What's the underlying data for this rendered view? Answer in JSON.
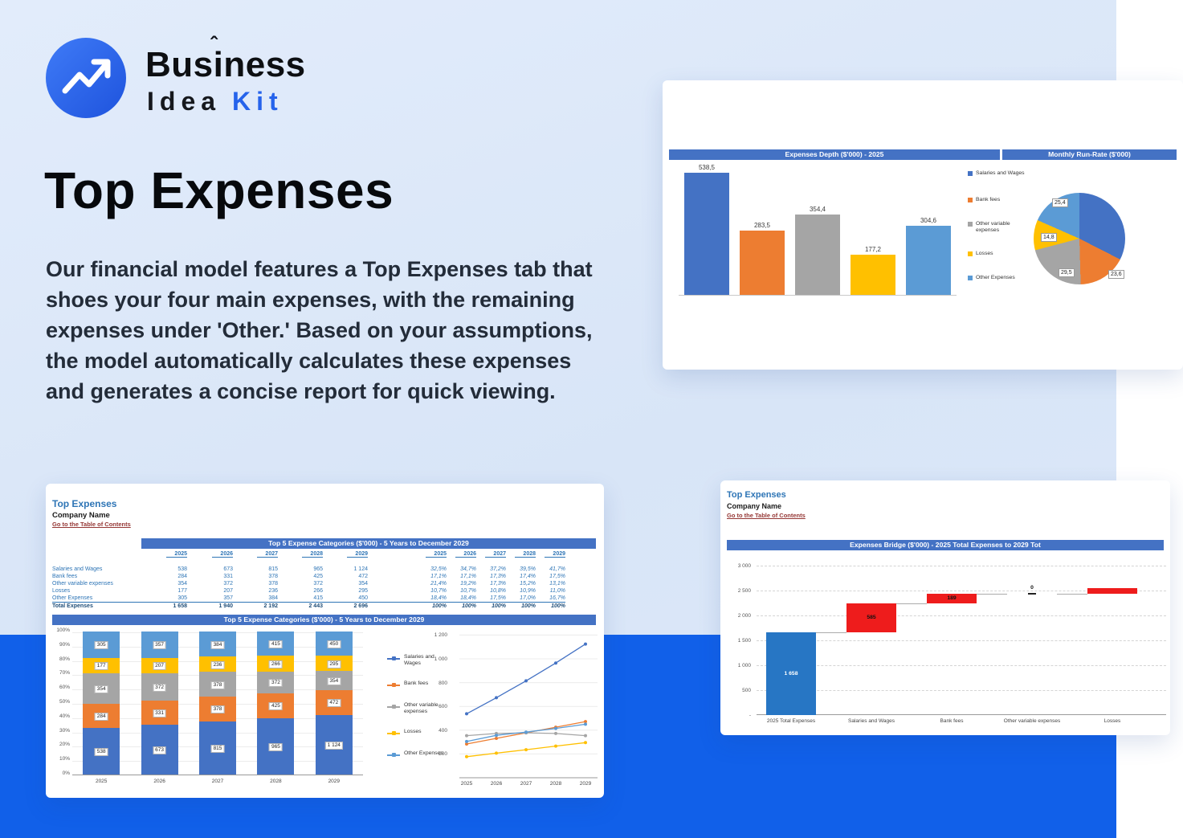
{
  "brand": {
    "word_top": "Business",
    "caret": "ˆ",
    "word_idea": "Idea",
    "word_kit": "Kit"
  },
  "hero": {
    "title": "Top Expenses",
    "paragraph": "Our financial model features a Top Expenses tab that shoes your four main expenses, with the remaining expenses under 'Other.' Based on your assumptions, the model automatically calculates these expenses and generates a concise report for quick viewing."
  },
  "cards": {
    "depth": {
      "header_left": "Expenses Depth ($'000) - 2025",
      "header_right": "Monthly Run-Rate ($'000)"
    },
    "top5": {
      "sheet_title": "Top Expenses",
      "company": "Company Name",
      "toc_link": "Go to the Table of Contents",
      "header_table": "Top 5 Expense Categories ($'000) - 5 Years to December 2029",
      "header_chart": "Top 5 Expense Categories ($'000) - 5 Years to December 2029",
      "table": {
        "years": [
          "2025",
          "2026",
          "2027",
          "2028",
          "2029"
        ],
        "rows": [
          {
            "label": "Salaries and Wages",
            "values": [
              "538",
              "673",
              "815",
              "965",
              "1 124"
            ],
            "pcts": [
              "32,5%",
              "34,7%",
              "37,2%",
              "39,5%",
              "41,7%"
            ]
          },
          {
            "label": "Bank fees",
            "values": [
              "284",
              "331",
              "378",
              "425",
              "472"
            ],
            "pcts": [
              "17,1%",
              "17,1%",
              "17,3%",
              "17,4%",
              "17,5%"
            ]
          },
          {
            "label": "Other variable expenses",
            "values": [
              "354",
              "372",
              "378",
              "372",
              "354"
            ],
            "pcts": [
              "21,4%",
              "19,2%",
              "17,3%",
              "15,2%",
              "13,1%"
            ]
          },
          {
            "label": "Losses",
            "values": [
              "177",
              "207",
              "236",
              "266",
              "295"
            ],
            "pcts": [
              "10,7%",
              "10,7%",
              "10,8%",
              "10,9%",
              "11,0%"
            ]
          },
          {
            "label": "Other Expenses",
            "values": [
              "305",
              "357",
              "384",
              "415",
              "450"
            ],
            "pcts": [
              "18,4%",
              "18,4%",
              "17,5%",
              "17,0%",
              "16,7%"
            ]
          }
        ],
        "total": {
          "label": "Total Expenses",
          "values": [
            "1 658",
            "1 940",
            "2 192",
            "2 443",
            "2 696"
          ],
          "pcts": [
            "100%",
            "100%",
            "100%",
            "100%",
            "100%"
          ]
        }
      }
    },
    "bridge": {
      "sheet_title": "Top Expenses",
      "company": "Company Name",
      "toc_link": "Go to the Table of Contents",
      "header": "Expenses Bridge ($'000) - 2025 Total Expenses to 2029 Tot"
    }
  },
  "chart_data": [
    {
      "id": "expenses_depth_bar",
      "type": "bar",
      "title": "Expenses Depth ($'000) - 2025",
      "categories": [
        "Salaries and Wages",
        "Bank fees",
        "Other variable expenses",
        "Losses",
        "Other Expenses"
      ],
      "values": [
        538.5,
        283.5,
        354.4,
        177.2,
        304.6
      ],
      "value_labels": [
        "538,5",
        "283,5",
        "354,4",
        "177,2",
        "304,6"
      ],
      "colors": [
        "#4472c4",
        "#ed7d31",
        "#a5a5a5",
        "#ffc000",
        "#5b9bd5"
      ],
      "legend": [
        "Salaries and Wages",
        "Bank fees",
        "Other variable expenses",
        "Losses",
        "Other Expenses"
      ],
      "legend_position": "right",
      "ylim": [
        0,
        600
      ],
      "grid": false
    },
    {
      "id": "monthly_run_rate_pie",
      "type": "pie",
      "title": "Monthly Run-Rate ($'000)",
      "slices": [
        {
          "name": "Salaries and Wages",
          "value": 44.9,
          "label": null
        },
        {
          "name": "Bank fees",
          "value": 23.6,
          "label": "23,6"
        },
        {
          "name": "Other variable expenses",
          "value": 29.5,
          "label": "29,5"
        },
        {
          "name": "Losses",
          "value": 14.8,
          "label": "14,8"
        },
        {
          "name": "Other Expenses",
          "value": 25.4,
          "label": "25,4"
        }
      ],
      "colors": [
        "#4472c4",
        "#ed7d31",
        "#a5a5a5",
        "#ffc000",
        "#5b9bd5"
      ]
    },
    {
      "id": "top5_stacked",
      "type": "bar",
      "stacked_pct": true,
      "title": "Top 5 Expense Categories ($'000) - 5 Years to December 2029",
      "categories": [
        "2025",
        "2026",
        "2027",
        "2028",
        "2029"
      ],
      "series": [
        {
          "name": "Salaries and Wages",
          "color": "#4472c4",
          "values": [
            538,
            673,
            815,
            965,
            1124
          ],
          "labels": [
            "538",
            "673",
            "815",
            "965",
            "1 124"
          ],
          "pct": [
            32.5,
            34.7,
            37.2,
            39.5,
            41.7
          ]
        },
        {
          "name": "Bank fees",
          "color": "#ed7d31",
          "values": [
            284,
            331,
            378,
            425,
            472
          ],
          "labels": [
            "284",
            "331",
            "378",
            "425",
            "472"
          ],
          "pct": [
            17.1,
            17.1,
            17.3,
            17.4,
            17.5
          ]
        },
        {
          "name": "Other variable expenses",
          "color": "#a5a5a5",
          "values": [
            354,
            372,
            378,
            372,
            354
          ],
          "labels": [
            "354",
            "372",
            "378",
            "372",
            "354"
          ],
          "pct": [
            21.4,
            19.2,
            17.3,
            15.2,
            13.1
          ]
        },
        {
          "name": "Losses",
          "color": "#ffc000",
          "values": [
            177,
            207,
            236,
            266,
            295
          ],
          "labels": [
            "177",
            "207",
            "236",
            "266",
            "295"
          ],
          "pct": [
            10.7,
            10.7,
            10.8,
            10.9,
            11.0
          ]
        },
        {
          "name": "Other Expenses",
          "color": "#5b9bd5",
          "values": [
            305,
            357,
            384,
            415,
            450
          ],
          "labels": [
            "305",
            "357",
            "384",
            "415",
            "450"
          ],
          "pct": [
            18.4,
            18.4,
            17.5,
            17.0,
            16.7
          ]
        }
      ],
      "yticks": [
        "100%",
        "90%",
        "80%",
        "70%",
        "60%",
        "50%",
        "40%",
        "30%",
        "20%",
        "10%",
        "0%"
      ],
      "grid": true,
      "legend_position": "right"
    },
    {
      "id": "top5_lines",
      "type": "line",
      "categories": [
        "2025",
        "2026",
        "2027",
        "2028",
        "2029"
      ],
      "series": [
        {
          "name": "Salaries and Wages",
          "color": "#4472c4",
          "values": [
            538,
            673,
            815,
            965,
            1124
          ]
        },
        {
          "name": "Bank fees",
          "color": "#ed7d31",
          "values": [
            284,
            331,
            378,
            425,
            472
          ]
        },
        {
          "name": "Other variable expenses",
          "color": "#a5a5a5",
          "values": [
            354,
            372,
            378,
            372,
            354
          ]
        },
        {
          "name": "Losses",
          "color": "#ffc000",
          "values": [
            177,
            207,
            236,
            266,
            295
          ]
        },
        {
          "name": "Other Expenses",
          "color": "#5b9bd5",
          "values": [
            305,
            357,
            384,
            415,
            450
          ]
        }
      ],
      "yticks": [
        "1 200",
        "1 000",
        "800",
        "600",
        "400",
        "200"
      ],
      "tick_values": [
        1200,
        1000,
        800,
        600,
        400,
        200
      ],
      "ylim": [
        0,
        1230
      ],
      "grid": true
    },
    {
      "id": "expenses_bridge_waterfall",
      "type": "bar",
      "subtype": "waterfall",
      "title": "Expenses Bridge ($'000) - 2025 Total Expenses to 2029 Tot",
      "categories": [
        "2025 Total Expenses",
        "Salaries and Wages",
        "Bank fees",
        "Other variable expenses",
        "Losses"
      ],
      "values": [
        1658,
        585,
        189,
        0,
        118
      ],
      "kinds": [
        "total",
        "increase",
        "increase",
        "increase",
        "increase"
      ],
      "bar_labels": [
        "1 658",
        "585",
        "189",
        "0",
        null
      ],
      "total_color": "#2776c4",
      "delta_color": "#ee1c1c",
      "yticks": [
        "3 000",
        "2 500",
        "2 000",
        "1 500",
        "1 000",
        "500",
        "-"
      ],
      "tick_values": [
        3000,
        2500,
        2000,
        1500,
        1000,
        500,
        0
      ],
      "ylim": [
        0,
        3100
      ],
      "grid": true
    }
  ]
}
